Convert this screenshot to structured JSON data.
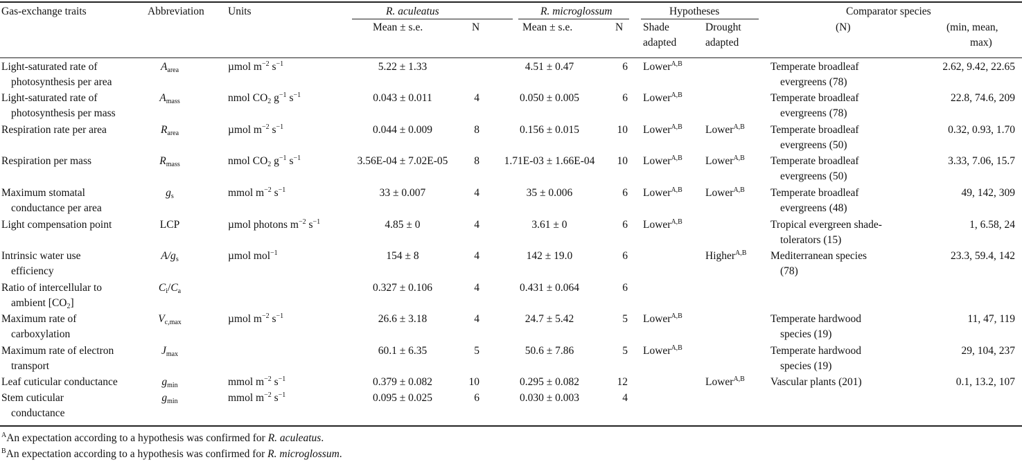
{
  "header": {
    "trait": "Gas-exchange traits",
    "abbrev": "Abbreviation",
    "units": "Units",
    "species_a": "R. aculeatus",
    "species_b": "R. microglossum",
    "mean_a": "Mean ± s.e.",
    "n_a": "N",
    "mean_b": "Mean ± s.e.",
    "n_b": "N",
    "hypotheses": "Hypotheses",
    "shade_line1": "Shade",
    "shade_line2": "adapted",
    "drought_line1": "Drought",
    "drought_line2": "adapted",
    "comparator": "Comparator species",
    "comp_n": "(N)",
    "range_line1": "(min, mean,",
    "range_line2": "max)"
  },
  "rows": [
    {
      "trait": [
        "Light-saturated rate of",
        "photosynthesis per area"
      ],
      "sym": "A",
      "sub": "area",
      "units": "µmol m−2 s−1",
      "mean_a": "5.22 ± 1.33",
      "n_a": "",
      "mean_b": "4.51 ± 0.47",
      "n_b": "6",
      "shade": "Lower",
      "shade_sup": "A,B",
      "drought": "",
      "drought_sup": "",
      "comp": [
        "Temperate broadleaf",
        "evergreens (78)"
      ],
      "range": "2.62, 9.42, 22.65"
    },
    {
      "trait": [
        "Light-saturated rate of",
        "photosynthesis per mass"
      ],
      "sym": "A",
      "sub": "mass",
      "units": "nmol CO2 g−1 s−1",
      "mean_a": "0.043 ± 0.011",
      "n_a": "4",
      "mean_b": "0.050 ± 0.005",
      "n_b": "6",
      "shade": "Lower",
      "shade_sup": "A,B",
      "drought": "",
      "drought_sup": "",
      "comp": [
        "Temperate broadleaf",
        "evergreens (78)"
      ],
      "range": "22.8, 74.6, 209"
    },
    {
      "trait": [
        "Respiration rate per area"
      ],
      "sym": "R",
      "sub": "area",
      "units": "µmol m−2 s−1",
      "mean_a": "0.044 ± 0.009",
      "n_a": "8",
      "mean_b": "0.156 ± 0.015",
      "n_b": "10",
      "shade": "Lower",
      "shade_sup": "A,B",
      "drought": "Lower",
      "drought_sup": "A,B",
      "comp": [
        "Temperate broadleaf",
        "evergreens (50)"
      ],
      "range": "0.32, 0.93, 1.70"
    },
    {
      "trait": [
        "Respiration per mass"
      ],
      "sym": "R",
      "sub": "mass",
      "units": "nmol CO2 g−1 s−1",
      "mean_a": "3.56E-04 ± 7.02E-05",
      "n_a": "8",
      "mean_b": "1.71E-03 ± 1.66E-04",
      "n_b": "10",
      "shade": "Lower",
      "shade_sup": "A,B",
      "drought": "Lower",
      "drought_sup": "A,B",
      "comp": [
        "Temperate broadleaf",
        "evergreens (50)"
      ],
      "range": "3.33, 7.06, 15.7"
    },
    {
      "trait": [
        "Maximum stomatal",
        "conductance per area"
      ],
      "sym": "g",
      "sub": "s",
      "units": "mmol m−2 s−1",
      "mean_a": "33 ± 0.007",
      "n_a": "4",
      "mean_b": "35 ± 0.006",
      "n_b": "6",
      "shade": "Lower",
      "shade_sup": "A,B",
      "drought": "Lower",
      "drought_sup": "A,B",
      "comp": [
        "Temperate broadleaf",
        "evergreens (48)"
      ],
      "range": "49, 142, 309"
    },
    {
      "trait": [
        "Light compensation point"
      ],
      "sym": "LCP",
      "sub": "",
      "units": "µmol photons m−2 s−1",
      "mean_a": "4.85 ± 0",
      "n_a": "4",
      "mean_b": "3.61 ± 0",
      "n_b": "6",
      "shade": "Lower",
      "shade_sup": "A,B",
      "drought": "",
      "drought_sup": "",
      "comp": [
        "Tropical evergreen shade-",
        "tolerators (15)"
      ],
      "range": "1, 6.58, 24"
    },
    {
      "trait": [
        "Intrinsic water use",
        "efficiency"
      ],
      "sym": "A/g",
      "sub": "s",
      "units": "µmol mol−1",
      "mean_a": "154 ± 8",
      "n_a": "4",
      "mean_b": "142 ± 19.0",
      "n_b": "6",
      "shade": "",
      "shade_sup": "",
      "drought": "Higher",
      "drought_sup": "A,B",
      "comp": [
        "Mediterranean species",
        "(78)"
      ],
      "range": "23.3, 59.4, 142"
    },
    {
      "trait": [
        "Ratio of intercellular to",
        "ambient [CO2]"
      ],
      "sym": "Ci/Ca",
      "sub": "",
      "units": "",
      "mean_a": "0.327 ± 0.106",
      "n_a": "4",
      "mean_b": "0.431 ± 0.064",
      "n_b": "6",
      "shade": "",
      "shade_sup": "",
      "drought": "",
      "drought_sup": "",
      "comp": [],
      "range": ""
    },
    {
      "trait": [
        "Maximum rate of",
        "carboxylation"
      ],
      "sym": "V",
      "sub": "c,max",
      "units": "µmol m−2 s−1",
      "mean_a": "26.6 ± 3.18",
      "n_a": "4",
      "mean_b": "24.7 ± 5.42",
      "n_b": "5",
      "shade": "Lower",
      "shade_sup": "A,B",
      "drought": "",
      "drought_sup": "",
      "comp": [
        "Temperate hardwood",
        "species (19)"
      ],
      "range": "11, 47, 119"
    },
    {
      "trait": [
        "Maximum rate of electron",
        "transport"
      ],
      "sym": "J",
      "sub": "max",
      "units": "",
      "mean_a": "60.1 ± 6.35",
      "n_a": "5",
      "mean_b": "50.6 ± 7.86",
      "n_b": "5",
      "shade": "Lower",
      "shade_sup": "A,B",
      "drought": "",
      "drought_sup": "",
      "comp": [
        "Temperate hardwood",
        "species (19)"
      ],
      "range": "29, 104, 237"
    },
    {
      "trait": [
        "Leaf cuticular conductance"
      ],
      "sym": "g",
      "sub": "min",
      "units": "mmol m−2 s−1",
      "mean_a": "0.379 ± 0.082",
      "n_a": "10",
      "mean_b": "0.295 ± 0.082",
      "n_b": "12",
      "shade": "",
      "shade_sup": "",
      "drought": "Lower",
      "drought_sup": "A,B",
      "comp": [
        "Vascular plants (201)"
      ],
      "range": "0.1, 13.2, 107"
    },
    {
      "trait": [
        "Stem cuticular",
        "conductance"
      ],
      "sym": "g",
      "sub": "min",
      "units": "mmol m−2 s−1",
      "mean_a": "0.095 ± 0.025",
      "n_a": "6",
      "mean_b": "0.030 ± 0.003",
      "n_b": "4",
      "shade": "",
      "shade_sup": "",
      "drought": "",
      "drought_sup": "",
      "comp": [],
      "range": ""
    }
  ],
  "footnotes": {
    "a_sup": "A",
    "a_text": "An expectation according to a hypothesis was confirmed for ",
    "a_species": "R. aculeatus",
    "a_end": ".",
    "b_sup": "B",
    "b_text": "An expectation according to a hypothesis was confirmed for ",
    "b_species": "R. microglossum",
    "b_end": "."
  }
}
